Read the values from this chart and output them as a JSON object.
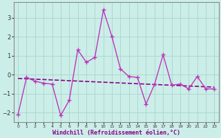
{
  "xlabel": "Windchill (Refroidissement éolien,°C)",
  "ylabel": "",
  "background_color": "#cceee8",
  "grid_color": "#aad8d0",
  "line_color": "#880088",
  "line_color2": "#bb33bb",
  "spine_color": "#888888",
  "x": [
    0,
    1,
    2,
    3,
    4,
    5,
    6,
    7,
    8,
    9,
    10,
    11,
    12,
    13,
    14,
    15,
    16,
    17,
    18,
    19,
    20,
    21,
    22,
    23
  ],
  "y_main": [
    -2.1,
    -0.15,
    -0.35,
    -0.45,
    -0.5,
    -2.15,
    -1.35,
    1.3,
    0.65,
    0.9,
    3.4,
    2.0,
    0.3,
    -0.1,
    -0.15,
    -1.55,
    -0.5,
    1.05,
    -0.55,
    -0.5,
    -0.75,
    -0.1,
    -0.75,
    -0.75
  ],
  "y_trend": [
    -0.2,
    -0.22,
    -0.24,
    -0.26,
    -0.28,
    -0.3,
    -0.32,
    -0.34,
    -0.36,
    -0.38,
    -0.4,
    -0.42,
    -0.44,
    -0.46,
    -0.48,
    -0.5,
    -0.52,
    -0.54,
    -0.56,
    -0.58,
    -0.6,
    -0.62,
    -0.64,
    -0.66
  ],
  "ylim": [
    -2.5,
    3.8
  ],
  "yticks": [
    -2,
    -1,
    0,
    1,
    2,
    3
  ],
  "xlim": [
    -0.5,
    23.5
  ]
}
